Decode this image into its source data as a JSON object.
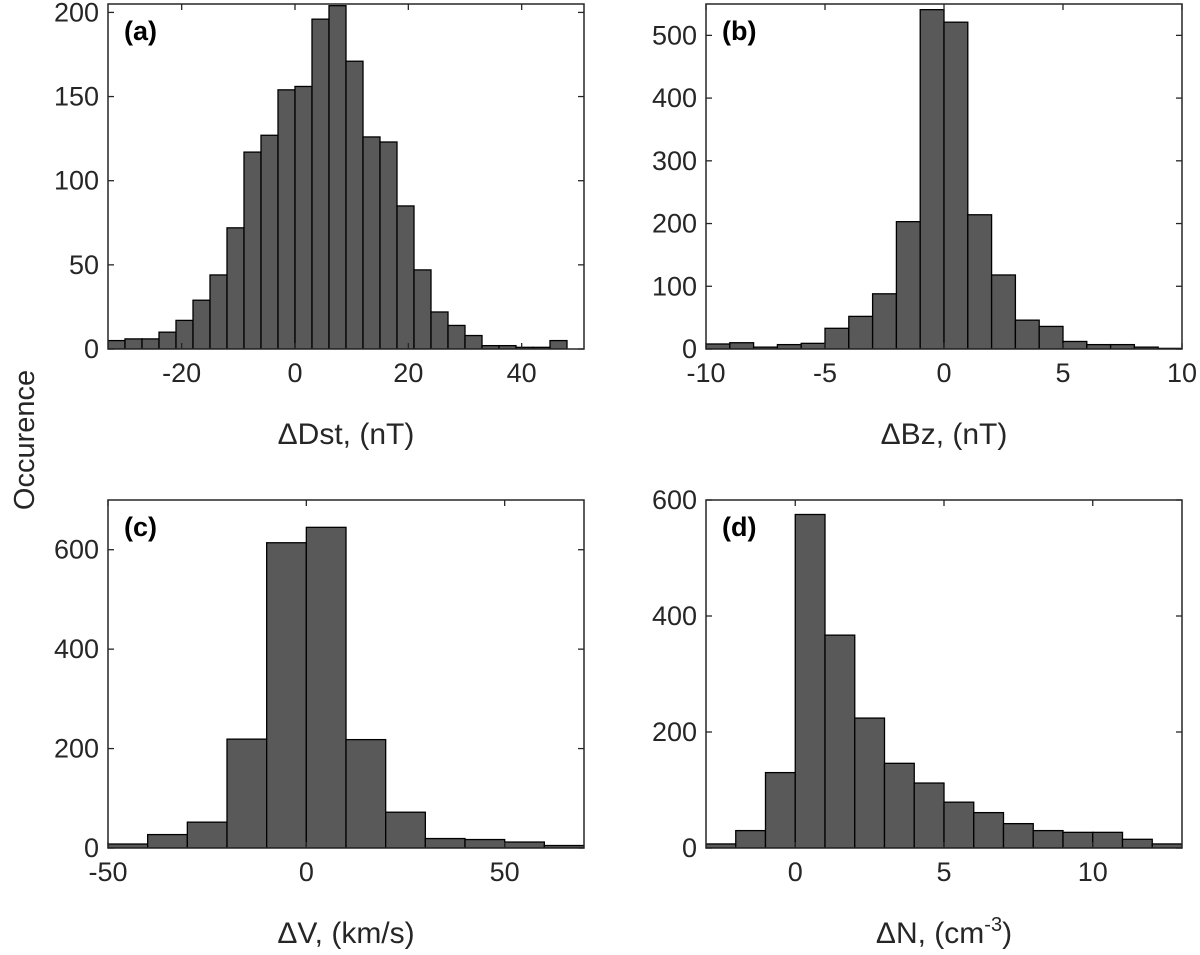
{
  "figure": {
    "ylabel": "Occurence"
  },
  "chart_data": [
    {
      "type": "bar",
      "panel": "(a)",
      "title": "",
      "xlabel": "ΔDst, (nT)",
      "xlabel_prefix": "ΔDst, (nT)",
      "xlabel_superscript": "",
      "xlabel_suffix": "",
      "ylabel": "Occurence",
      "xlim": [
        -33,
        51
      ],
      "ylim": [
        0,
        205
      ],
      "xticks": [
        -20,
        0,
        20,
        40
      ],
      "yticks": [
        0,
        50,
        100,
        150,
        200
      ],
      "bin_width": 3,
      "bin_edges_start": -33,
      "values": [
        5,
        6,
        6,
        10,
        17,
        29,
        44,
        72,
        117,
        127,
        154,
        156,
        196,
        204,
        171,
        126,
        123,
        85,
        47,
        22,
        14,
        8,
        2,
        2,
        1,
        1,
        5
      ],
      "bar_color": "#595959",
      "edge_color": "#000000"
    },
    {
      "type": "bar",
      "panel": "(b)",
      "title": "",
      "xlabel": "ΔBz, (nT)",
      "xlabel_prefix": "ΔBz, (nT)",
      "xlabel_superscript": "",
      "xlabel_suffix": "",
      "ylabel": "Occurence",
      "xlim": [
        -10,
        10
      ],
      "ylim": [
        0,
        550
      ],
      "xticks": [
        -10,
        -5,
        0,
        5,
        10
      ],
      "yticks": [
        0,
        100,
        200,
        300,
        400,
        500
      ],
      "bin_width": 1,
      "bin_edges_start": -10,
      "values": [
        8,
        10,
        3,
        7,
        9,
        33,
        52,
        88,
        203,
        541,
        521,
        214,
        118,
        46,
        36,
        12,
        7,
        7,
        3,
        1
      ],
      "bar_color": "#595959",
      "edge_color": "#000000"
    },
    {
      "type": "bar",
      "panel": "(c)",
      "title": "",
      "xlabel": "ΔV, (km/s)",
      "xlabel_prefix": "ΔV, (km/s)",
      "xlabel_superscript": "",
      "xlabel_suffix": "",
      "ylabel": "Occurence",
      "xlim": [
        -50,
        70
      ],
      "ylim": [
        0,
        700
      ],
      "xticks": [
        -50,
        0,
        50
      ],
      "yticks": [
        0,
        200,
        400,
        600
      ],
      "bin_width": 10,
      "bin_edges_start": -50,
      "values": [
        8,
        27,
        52,
        219,
        614,
        645,
        218,
        72,
        19,
        17,
        12,
        5
      ],
      "bar_color": "#595959",
      "edge_color": "#000000"
    },
    {
      "type": "bar",
      "panel": "(d)",
      "title": "",
      "xlabel": "ΔN, (cm-3)",
      "xlabel_prefix": "ΔN, (cm",
      "xlabel_superscript": "-3",
      "xlabel_suffix": ")",
      "ylabel": "Occurence",
      "xlim": [
        -3,
        13
      ],
      "ylim": [
        0,
        600
      ],
      "xticks": [
        0,
        5,
        10
      ],
      "yticks": [
        0,
        200,
        400,
        600
      ],
      "bin_width": 1,
      "bin_edges_start": -3,
      "values": [
        7,
        30,
        130,
        575,
        367,
        224,
        146,
        112,
        79,
        61,
        42,
        30,
        27,
        27,
        15,
        7
      ],
      "bar_color": "#595959",
      "edge_color": "#000000"
    }
  ]
}
